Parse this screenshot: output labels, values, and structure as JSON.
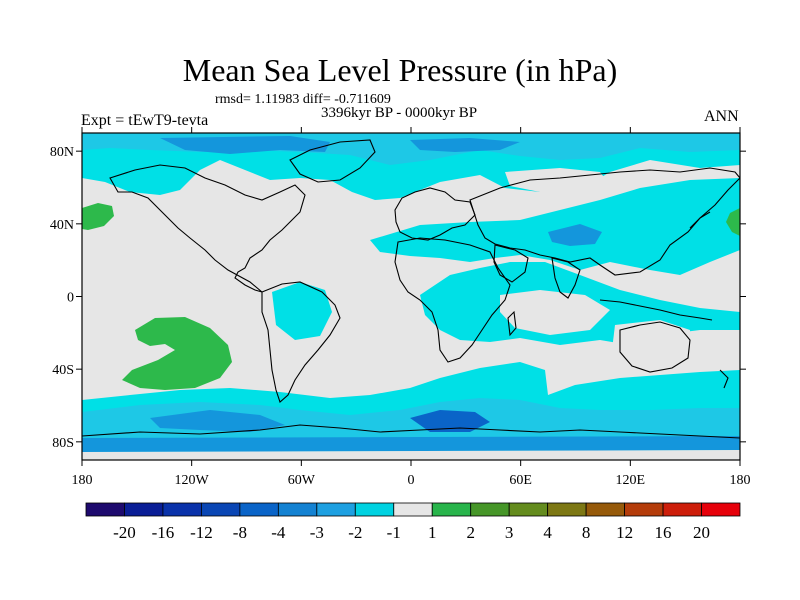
{
  "title": "Mean Sea Level Pressure (in hPa)",
  "stats": "rmsd= 1.11983 diff= -0.711609",
  "period": "3396kyr BP - 0000kyr BP",
  "experiment": "Expt = tEwT9-tevta",
  "season": "ANN",
  "map": {
    "lon_range": [
      -180,
      180
    ],
    "lat_range": [
      -90,
      90
    ],
    "lat_ticks": [
      {
        "label": "80N",
        "lat": 80
      },
      {
        "label": "40N",
        "lat": 40
      },
      {
        "label": "0",
        "lat": 0
      },
      {
        "label": "40S",
        "lat": -40
      },
      {
        "label": "80S",
        "lat": -80
      }
    ],
    "lon_ticks": [
      {
        "label": "180",
        "lon": -180
      },
      {
        "label": "120W",
        "lon": -120
      },
      {
        "label": "60W",
        "lon": -60
      },
      {
        "label": "0",
        "lon": 0
      },
      {
        "label": "60E",
        "lon": 60
      },
      {
        "label": "120E",
        "lon": 120
      },
      {
        "label": "180",
        "lon": 180
      }
    ],
    "colors": {
      "neutral": "#e6e6e6",
      "minus1": "#00e0e6",
      "minus2": "#1ec8e6",
      "minus3": "#1496dc",
      "minus4": "#0a64c8",
      "plus1": "#2db94b",
      "coast": "#000000"
    }
  },
  "colorbar": {
    "colors": [
      "#1e0a6e",
      "#0a1e96",
      "#0a32aa",
      "#0a46b4",
      "#0a64c8",
      "#1482d2",
      "#1ea0e1",
      "#00d2e1",
      "#e6e6e6",
      "#28b44b",
      "#469628",
      "#648c1e",
      "#7d7814",
      "#965a0a",
      "#b43c0a",
      "#cd1e0a",
      "#e6000a"
    ],
    "labels": [
      "-20",
      "-16",
      "-12",
      "-8",
      "-4",
      "-3",
      "-2",
      "-1",
      "1",
      "2",
      "3",
      "4",
      "8",
      "12",
      "16",
      "20"
    ]
  }
}
